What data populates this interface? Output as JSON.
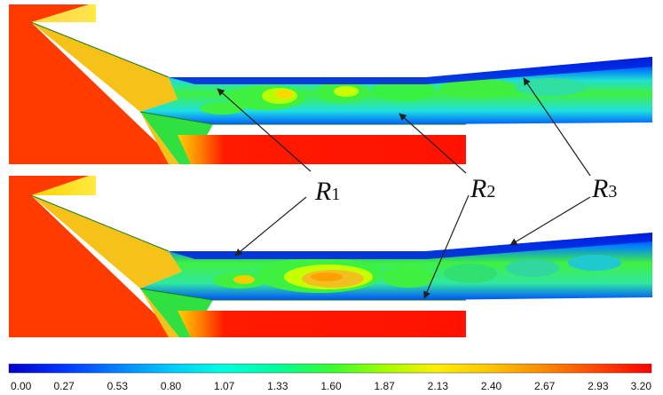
{
  "region_labels": [
    {
      "id": "r1",
      "letter": "R",
      "sub": "1"
    },
    {
      "id": "r2",
      "letter": "R",
      "sub": "2"
    },
    {
      "id": "r3",
      "letter": "R",
      "sub": "3"
    }
  ],
  "colorbar": {
    "ticks": [
      "0.00",
      "0.27",
      "0.53",
      "0.80",
      "1.07",
      "1.33",
      "1.60",
      "1.87",
      "2.13",
      "2.40",
      "2.67",
      "2.93",
      "3.20"
    ],
    "colors": [
      "#0000c8",
      "#0033ff",
      "#0080ff",
      "#00c8ff",
      "#00ffe0",
      "#00ff9a",
      "#33ff33",
      "#a0ff00",
      "#ffee00",
      "#ffc400",
      "#ff8800",
      "#ff4400",
      "#ff0000"
    ]
  },
  "colors": {
    "red": "#ff3b00",
    "yellow": "#f6c21a",
    "green": "#2fe03a",
    "deep_blue": "#0018d8",
    "cyan": "#18d4f0"
  }
}
